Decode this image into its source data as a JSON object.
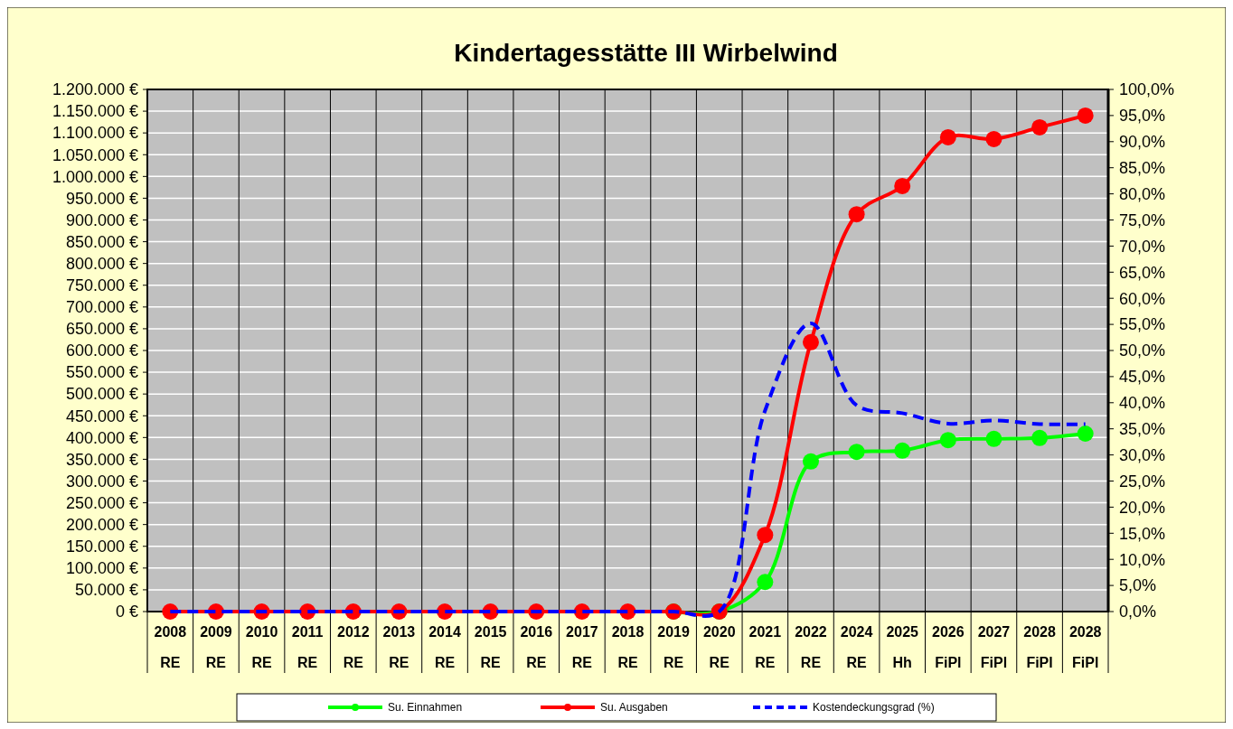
{
  "chart_data": {
    "type": "line",
    "title": "Kindertagesstätte III Wirbelwind",
    "categories": [
      "2008\nRE",
      "2009\nRE",
      "2010\nRE",
      "2011\nRE",
      "2012\nRE",
      "2013\nRE",
      "2014\nRE",
      "2015\nRE",
      "2016\nRE",
      "2017\nRE",
      "2018\nRE",
      "2019\nRE",
      "2020\nRE",
      "2021\nRE",
      "2022\nRE",
      "2024\nRE",
      "2025\nHh",
      "2026\nFiPl",
      "2027\nFiPl",
      "2028\nFiPl",
      "2028\nFiPl"
    ],
    "series": [
      {
        "name": "Su. Einnahmen",
        "color": "#00ff00",
        "marker": "circle",
        "line_style": "solid",
        "values": [
          null,
          null,
          null,
          null,
          null,
          null,
          null,
          null,
          null,
          null,
          null,
          0,
          0,
          68000,
          345000,
          367000,
          370000,
          394000,
          397000,
          399000,
          409000
        ]
      },
      {
        "name": "Su. Ausgaben",
        "color": "#ff0000",
        "marker": "circle",
        "line_style": "solid",
        "values": [
          0,
          0,
          0,
          0,
          0,
          0,
          0,
          0,
          0,
          0,
          0,
          0,
          0,
          176000,
          619000,
          913000,
          978000,
          1090000,
          1086000,
          1113000,
          1140000
        ]
      },
      {
        "name": "Kostendeckungsgrad (%)",
        "color": "#0000ff",
        "marker": "none",
        "line_style": "dashed",
        "axis": "y2",
        "values": [
          0,
          0,
          0,
          0,
          0,
          0,
          0,
          0,
          0,
          0,
          0,
          0,
          0,
          38.5,
          55.2,
          39.5,
          38.0,
          36.0,
          36.6,
          35.9,
          35.9
        ]
      }
    ],
    "ylim": [
      0,
      1200000
    ],
    "yticks": [
      {
        "value": 0,
        "label": "0 €"
      },
      {
        "value": 50000,
        "label": "50.000 €"
      },
      {
        "value": 100000,
        "label": "100.000 €"
      },
      {
        "value": 150000,
        "label": "150.000 €"
      },
      {
        "value": 200000,
        "label": "200.000 €"
      },
      {
        "value": 250000,
        "label": "250.000 €"
      },
      {
        "value": 300000,
        "label": "300.000 €"
      },
      {
        "value": 350000,
        "label": "350.000 €"
      },
      {
        "value": 400000,
        "label": "400.000 €"
      },
      {
        "value": 450000,
        "label": "450.000 €"
      },
      {
        "value": 500000,
        "label": "500.000 €"
      },
      {
        "value": 550000,
        "label": "550.000 €"
      },
      {
        "value": 600000,
        "label": "600.000 €"
      },
      {
        "value": 650000,
        "label": "650.000 €"
      },
      {
        "value": 700000,
        "label": "700.000 €"
      },
      {
        "value": 750000,
        "label": "750.000 €"
      },
      {
        "value": 800000,
        "label": "800.000 €"
      },
      {
        "value": 850000,
        "label": "850.000 €"
      },
      {
        "value": 900000,
        "label": "900.000 €"
      },
      {
        "value": 950000,
        "label": "950.000 €"
      },
      {
        "value": 1000000,
        "label": "1.000.000 €"
      },
      {
        "value": 1050000,
        "label": "1.050.000 €"
      },
      {
        "value": 1100000,
        "label": "1.100.000 €"
      },
      {
        "value": 1150000,
        "label": "1.150.000 €"
      },
      {
        "value": 1200000,
        "label": "1.200.000 €"
      }
    ],
    "y2lim": [
      0,
      100
    ],
    "y2ticks": [
      {
        "value": 0,
        "label": "0,0%"
      },
      {
        "value": 5,
        "label": "5,0%"
      },
      {
        "value": 10,
        "label": "10,0%"
      },
      {
        "value": 15,
        "label": "15,0%"
      },
      {
        "value": 20,
        "label": "20,0%"
      },
      {
        "value": 25,
        "label": "25,0%"
      },
      {
        "value": 30,
        "label": "30,0%"
      },
      {
        "value": 35,
        "label": "35,0%"
      },
      {
        "value": 40,
        "label": "40,0%"
      },
      {
        "value": 45,
        "label": "45,0%"
      },
      {
        "value": 50,
        "label": "50,0%"
      },
      {
        "value": 55,
        "label": "55,0%"
      },
      {
        "value": 60,
        "label": "60,0%"
      },
      {
        "value": 65,
        "label": "65,0%"
      },
      {
        "value": 70,
        "label": "70,0%"
      },
      {
        "value": 75,
        "label": "75,0%"
      },
      {
        "value": 80,
        "label": "80,0%"
      },
      {
        "value": 85,
        "label": "85,0%"
      },
      {
        "value": 90,
        "label": "90,0%"
      },
      {
        "value": 95,
        "label": "95,0%"
      },
      {
        "value": 100,
        "label": "100,0%"
      }
    ],
    "grid": "y",
    "legend": "bottom"
  }
}
